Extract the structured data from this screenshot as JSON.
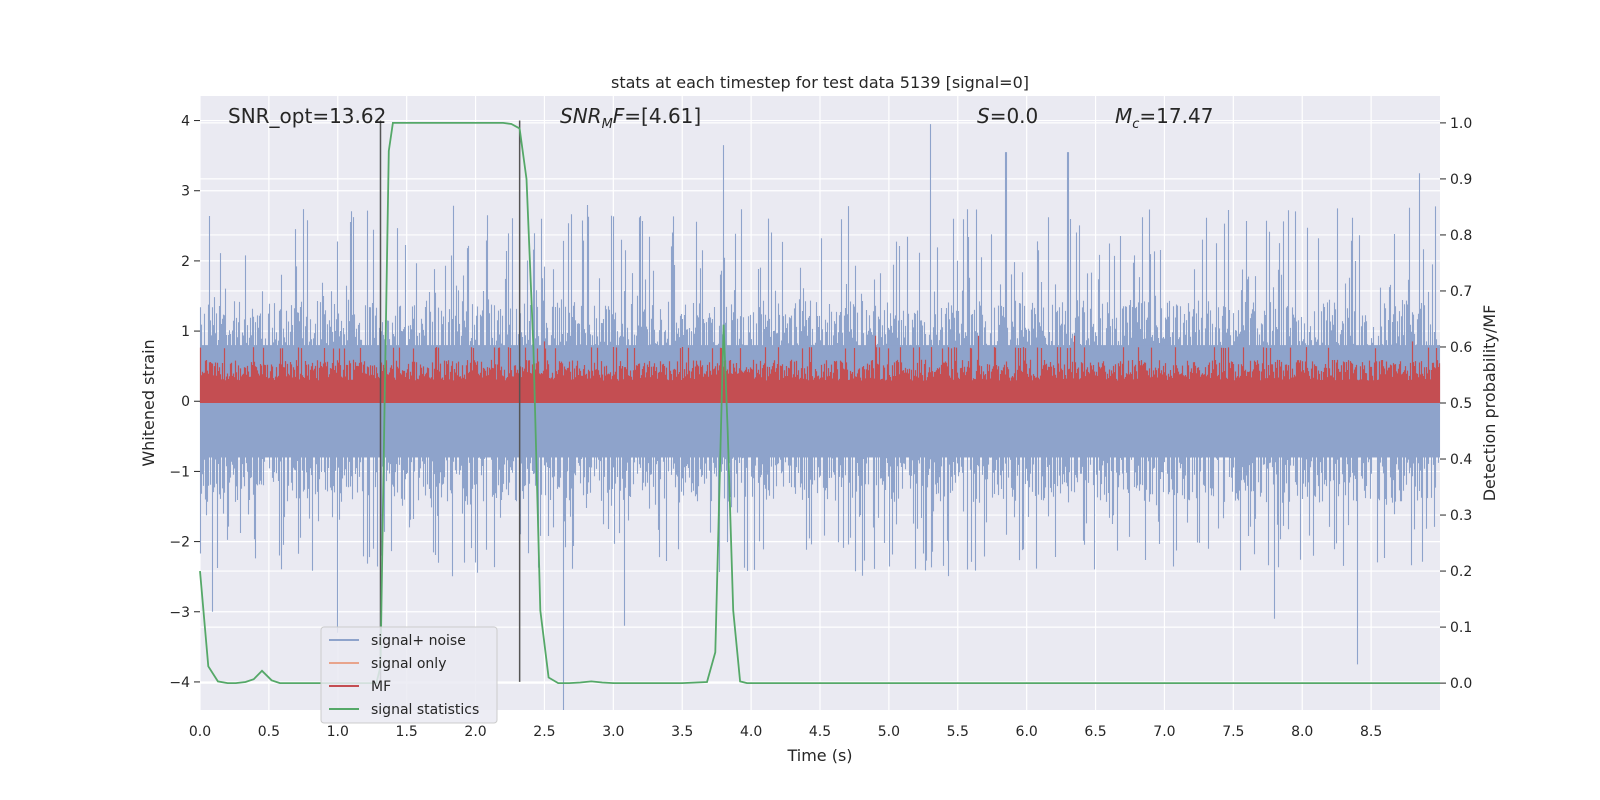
{
  "chart_data": {
    "type": "line",
    "title": "stats at each timestep for test data 5139 [signal=0]",
    "xlabel": "Time (s)",
    "ylabel": "Whitened strain",
    "y2label": "Detection probability/MF",
    "xlim": [
      0,
      9.0
    ],
    "ylim": [
      -4.4,
      4.35
    ],
    "y2lim": [
      -0.048,
      1.048
    ],
    "x_ticks": [
      0.0,
      0.5,
      1.0,
      1.5,
      2.0,
      2.5,
      3.0,
      3.5,
      4.0,
      4.5,
      5.0,
      5.5,
      6.0,
      6.5,
      7.0,
      7.5,
      8.0,
      8.5
    ],
    "x_tick_labels": [
      "0.0",
      "0.5",
      "1.0",
      "1.5",
      "2.0",
      "2.5",
      "3.0",
      "3.5",
      "4.0",
      "4.5",
      "5.0",
      "5.5",
      "6.0",
      "6.5",
      "7.0",
      "7.5",
      "8.0",
      "8.5"
    ],
    "y_ticks": [
      4,
      3,
      2,
      1,
      0,
      -1,
      -2,
      -3,
      -4
    ],
    "y_tick_labels": [
      "4",
      "3",
      "2",
      "1",
      "0",
      "−1",
      "−2",
      "−3",
      "−4"
    ],
    "y2_ticks": [
      1.0,
      0.9,
      0.8,
      0.7,
      0.6,
      0.5,
      0.4,
      0.3,
      0.2,
      0.1,
      0.0
    ],
    "y2_tick_labels": [
      "1.0",
      "0.9",
      "0.8",
      "0.7",
      "0.6",
      "0.5",
      "0.4",
      "0.3",
      "0.2",
      "0.1",
      "0.0"
    ],
    "grid": true,
    "annotations": {
      "snr_opt": "SNR_opt=13.62",
      "snr_mf": "=[4.61]",
      "s_value": "=0.0",
      "mc_value": "=17.47"
    },
    "vlines": [
      {
        "x": 1.31,
        "y": [
          -4,
          4
        ]
      },
      {
        "x": 2.32,
        "y": [
          -4,
          4
        ]
      }
    ],
    "series": [
      {
        "name": "signal+ noise",
        "color": "#8ea3cb",
        "kind": "noise",
        "x_range": [
          0,
          9.0
        ],
        "typical_envelope": [
          -1.6,
          1.6
        ],
        "peak_maxima": [
          [
            1.31,
            4.0
          ],
          [
            3.8,
            3.65
          ],
          [
            5.3,
            3.95
          ],
          [
            5.85,
            3.55
          ],
          [
            6.3,
            3.55
          ],
          [
            8.85,
            3.25
          ]
        ],
        "peak_minima": [
          [
            0.09,
            -3.0
          ],
          [
            1.0,
            -3.3
          ],
          [
            1.32,
            -2.2
          ],
          [
            2.64,
            -4.4
          ],
          [
            3.08,
            -3.2
          ],
          [
            7.8,
            -3.1
          ],
          [
            8.4,
            -3.75
          ]
        ]
      },
      {
        "name": "signal only",
        "color": "#e8a48c",
        "values": []
      },
      {
        "name": "MF",
        "color": "#c44e52",
        "kind": "noise",
        "axis": "right",
        "x_range": [
          0,
          9.0
        ],
        "typical_envelope": [
          0.5,
          0.58
        ],
        "peak_maxima": [
          [
            2.5,
            0.61
          ],
          [
            4.9,
            0.62
          ],
          [
            5.65,
            0.62
          ],
          [
            6.35,
            0.62
          ],
          [
            8.8,
            0.61
          ]
        ]
      },
      {
        "name": "signal statistics",
        "color": "#55a868",
        "axis": "right",
        "x": [
          0.0,
          0.06,
          0.13,
          0.2,
          0.26,
          0.33,
          0.39,
          0.45,
          0.52,
          0.58,
          0.65,
          0.75,
          0.9,
          1.0,
          1.1,
          1.2,
          1.28,
          1.31,
          1.34,
          1.37,
          1.4,
          1.5,
          1.7,
          2.0,
          2.2,
          2.26,
          2.32,
          2.37,
          2.42,
          2.47,
          2.53,
          2.6,
          2.68,
          2.76,
          2.84,
          2.92,
          3.0,
          3.2,
          3.5,
          3.68,
          3.74,
          3.8,
          3.83,
          3.87,
          3.92,
          3.97,
          4.1,
          5.0,
          6.0,
          7.0,
          8.0,
          9.0
        ],
        "values": [
          0.2,
          0.03,
          0.003,
          0.0,
          0.0,
          0.002,
          0.007,
          0.022,
          0.005,
          0.0,
          0.0,
          0.0,
          0.0,
          0.0,
          0.0,
          0.0,
          0.0,
          0.03,
          0.5,
          0.95,
          1.0,
          1.0,
          1.0,
          1.0,
          1.0,
          0.998,
          0.99,
          0.9,
          0.6,
          0.13,
          0.01,
          0.0,
          0.0,
          0.001,
          0.003,
          0.001,
          0.0,
          0.0,
          0.0,
          0.002,
          0.055,
          0.64,
          0.45,
          0.13,
          0.003,
          0.0,
          0.0,
          0.0,
          0.0,
          0.0,
          0.0,
          0.0
        ]
      }
    ],
    "legend": {
      "position": "lower-left",
      "entries": [
        "signal+ noise",
        "signal only",
        "MF",
        "signal statistics"
      ]
    }
  }
}
